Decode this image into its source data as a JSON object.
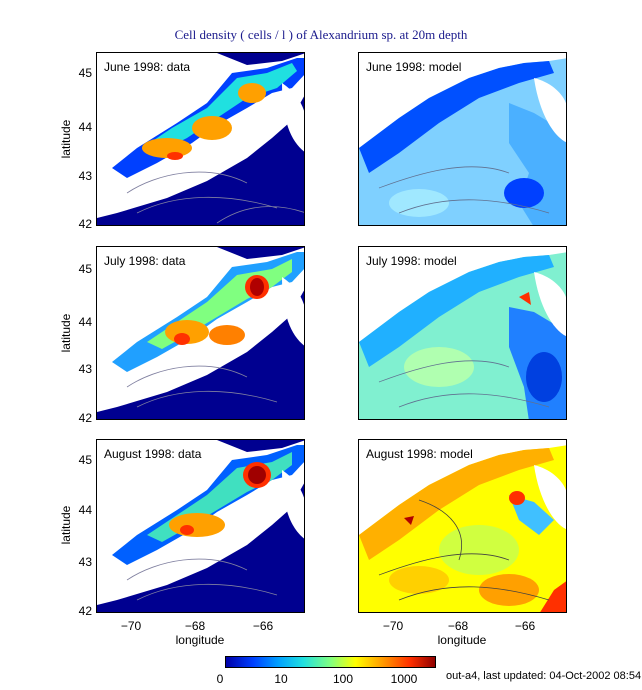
{
  "title": "Cell density ( cells / l ) of Alexandrium sp. at 20m depth",
  "panels": [
    {
      "label": "June 1998: data",
      "kind": "data",
      "month": "June"
    },
    {
      "label": "June 1998: model",
      "kind": "model",
      "month": "June"
    },
    {
      "label": "July 1998: data",
      "kind": "data",
      "month": "July"
    },
    {
      "label": "July 1998: model",
      "kind": "model",
      "month": "July"
    },
    {
      "label": "August 1998: data",
      "kind": "data",
      "month": "August"
    },
    {
      "label": "August 1998: model",
      "kind": "model",
      "month": "August"
    }
  ],
  "axes": {
    "ylabel": "latitude",
    "xlabel": "longitude",
    "yticks": [
      "45",
      "44",
      "43",
      "42"
    ],
    "xticks": [
      "−70",
      "−68",
      "−66"
    ]
  },
  "colorbar": {
    "ticks": [
      "0",
      "10",
      "100",
      "1000"
    ],
    "colors": [
      "#0000a8",
      "#0040ff",
      "#00a0ff",
      "#20e0e0",
      "#80ff80",
      "#ffff00",
      "#ff9a00",
      "#ff3000",
      "#900000"
    ]
  },
  "footer": "out-a4, last updated: 04-Oct-2002 08:54",
  "colors": {
    "title": "#1a1a8c",
    "ocean_background": "#000090",
    "land": "#ffffff"
  }
}
